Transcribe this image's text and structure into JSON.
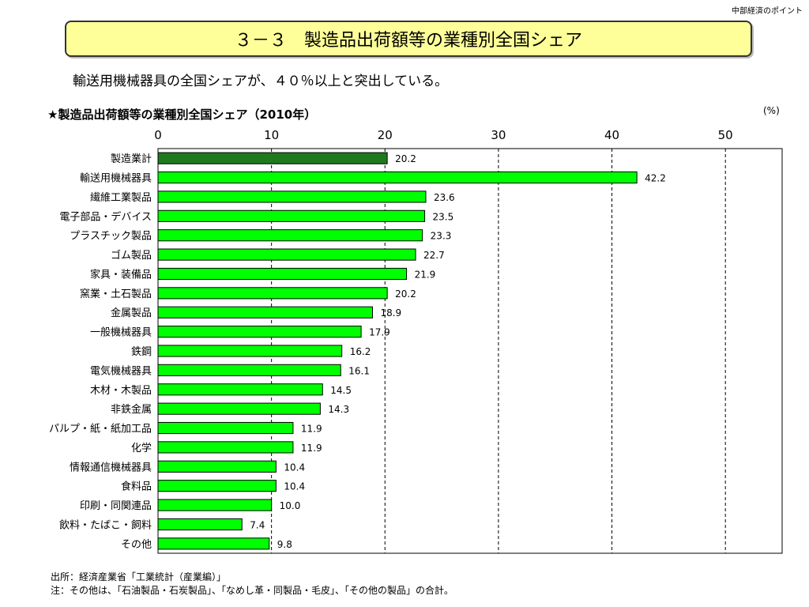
{
  "header": {
    "corner_label": "中部経済のポイント",
    "title": "３－３　製造品出荷額等の業種別全国シェア",
    "subtitle": "輸送用機械器具の全国シェアが、４０％以上と突出している。"
  },
  "chart_data": {
    "type": "bar",
    "orientation": "horizontal",
    "title": "★製造品出荷額等の業種別全国シェア（2010年）",
    "unit": "(%)",
    "xlim": [
      0,
      55
    ],
    "ticks": [
      0,
      10,
      20,
      30,
      40,
      50
    ],
    "tick_labels": [
      "0",
      "10",
      "20",
      "30",
      "40",
      "50"
    ],
    "grid": "vertical-dashed",
    "colors": {
      "highlight": "#1f7a1f",
      "bar": "#00ff00",
      "border": "#000000"
    },
    "categories": [
      "製造業計",
      "輸送用機械器具",
      "繊維工業製品",
      "電子部品・デバイス",
      "プラスチック製品",
      "ゴム製品",
      "家具・装備品",
      "窯業・土石製品",
      "金属製品",
      "一般機械器具",
      "鉄鋼",
      "電気機械器具",
      "木材・木製品",
      "非鉄金属",
      "パルプ・紙・紙加工品",
      "化学",
      "情報通信機械器具",
      "食料品",
      "印刷・同関連品",
      "飲料・たばこ・飼料",
      "その他"
    ],
    "values": [
      20.2,
      42.2,
      23.6,
      23.5,
      23.3,
      22.7,
      21.9,
      20.2,
      18.9,
      17.9,
      16.2,
      16.1,
      14.5,
      14.3,
      11.9,
      11.9,
      10.4,
      10.4,
      10.0,
      7.4,
      9.8
    ],
    "value_labels": [
      "20.2",
      "42.2",
      "23.6",
      "23.5",
      "23.3",
      "22.7",
      "21.9",
      "20.2",
      "18.9",
      "17.9",
      "16.2",
      "16.1",
      "14.5",
      "14.3",
      "11.9",
      "11.9",
      "10.4",
      "10.4",
      "10.0",
      "7.4",
      "9.8"
    ],
    "highlight_index": 0
  },
  "footer": {
    "source": "出所：経済産業省「工業統計（産業編）」",
    "note": "注：その他は、「石油製品・石炭製品」、「なめし革・同製品・毛皮」、「その他の製品」の合計。"
  }
}
